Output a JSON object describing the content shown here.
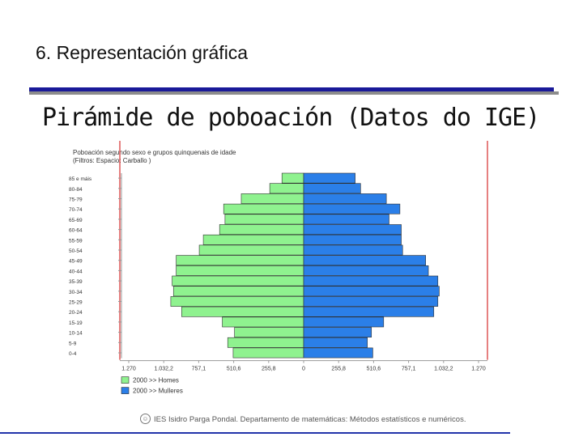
{
  "slide": {
    "section_title": "6. Representación gráfica",
    "title": "Pirámide de poboación (Datos do IGE)",
    "footer": "IES Isidro Parga Pondal. Departamento de matemáticas: Métodos estatísticos e numéricos."
  },
  "colors": {
    "homes": "#8ff28f",
    "mulleres": "#2b7fe8",
    "axis_red": "#cc0000",
    "rule_blue": "#1a1a99"
  },
  "chart_data": {
    "type": "bar",
    "orientation": "horizontal-pyramid",
    "title_lines": [
      "Poboación segundo sexo e grupos quinquenais de idade",
      "(Filtros: Espacio: Carballo )"
    ],
    "categories": [
      "85 e máis",
      "80-84",
      "75-79",
      "70-74",
      "65-69",
      "60-64",
      "55-59",
      "50-54",
      "45-49",
      "40-44",
      "35-39",
      "30-34",
      "25-29",
      "20-24",
      "15-19",
      "10-14",
      "5-9",
      "0-4"
    ],
    "category_labels": [
      "85 e máis",
      "80-84",
      "75-79",
      "70-74",
      "65-69",
      "60-64",
      "55-59",
      "50-54",
      "45-49",
      "40-44",
      "35-39",
      "30-34",
      "25-29",
      "20-24",
      "15-19",
      "10-14",
      "5-9",
      "0-4"
    ],
    "x_tick_labels": [
      "1.270",
      "1.032,2",
      "757,1",
      "510,6",
      "255,8",
      "0",
      "255,8",
      "510,6",
      "757,1",
      "1.032,2",
      "1.270"
    ],
    "xlim": [
      -1290,
      1290
    ],
    "series": [
      {
        "name": "2000 >> Homes",
        "side": "left",
        "values": [
          160,
          250,
          460,
          590,
          580,
          620,
          740,
          770,
          940,
          940,
          970,
          960,
          980,
          900,
          600,
          510,
          560,
          520
        ]
      },
      {
        "name": "2000 >> Mulleres",
        "side": "right",
        "values": [
          380,
          420,
          610,
          710,
          630,
          720,
          720,
          730,
          900,
          920,
          990,
          1000,
          990,
          960,
          590,
          500,
          470,
          510
        ]
      }
    ]
  }
}
